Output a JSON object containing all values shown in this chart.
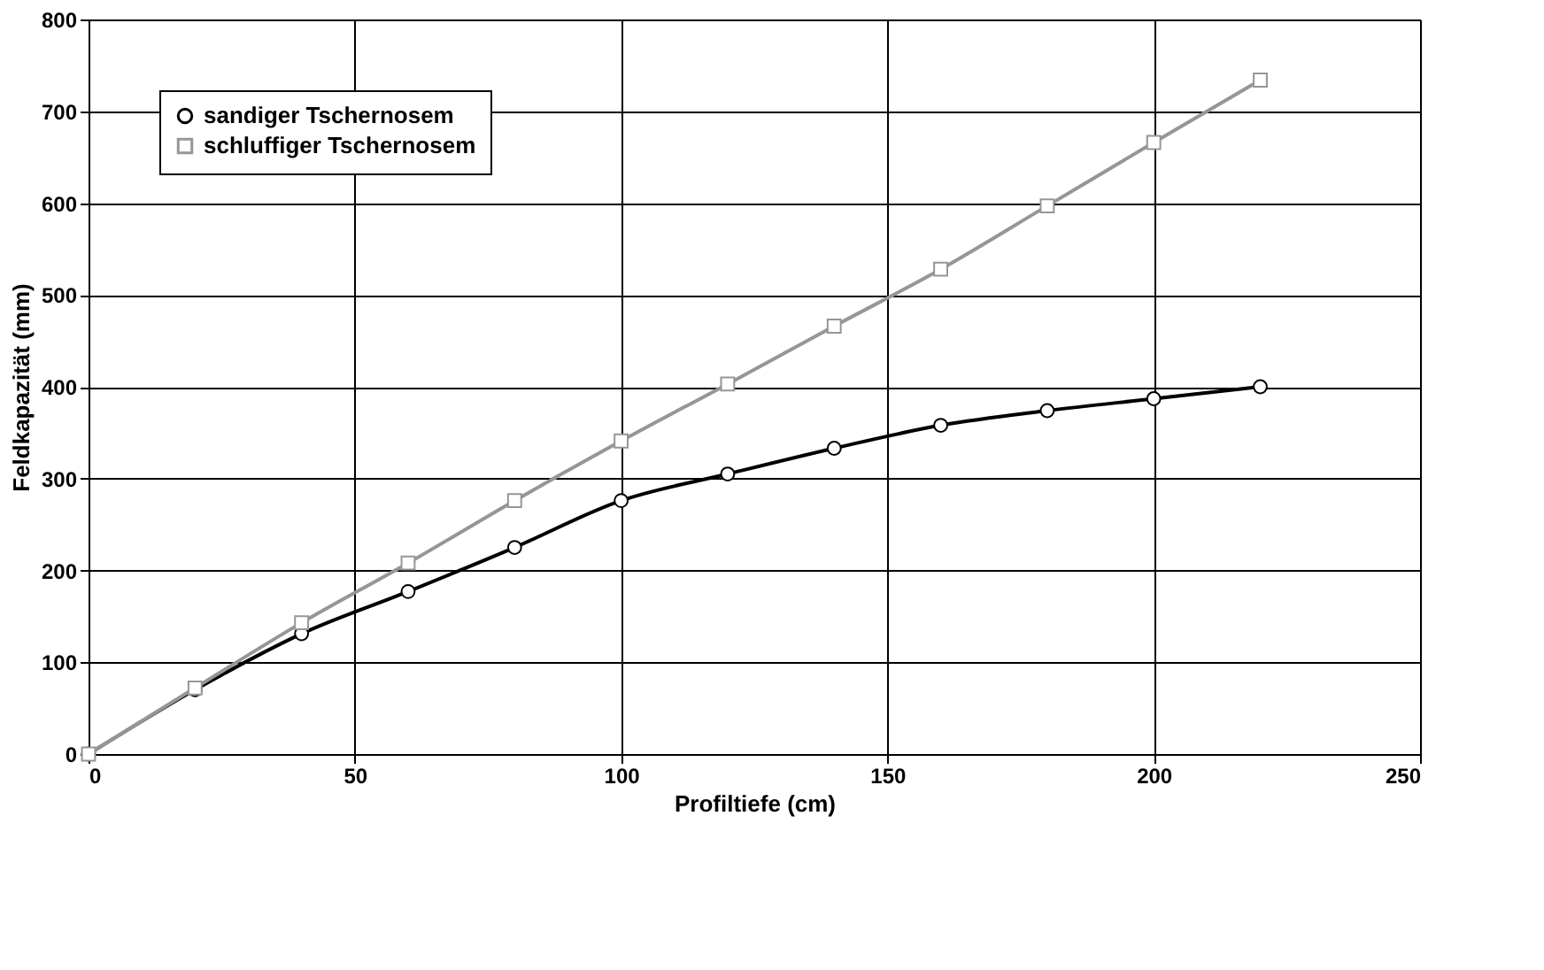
{
  "chart_data": {
    "type": "line",
    "xlabel": "Profiltiefe (cm)",
    "ylabel": "Feldkapazität (mm)",
    "x": [
      0,
      20,
      40,
      60,
      80,
      100,
      120,
      140,
      160,
      180,
      200,
      220
    ],
    "series": [
      {
        "name": "sandiger Tschernosem",
        "color": "#000000",
        "marker": "circle",
        "values": [
          0,
          70,
          131,
          177,
          225,
          276,
          305,
          333,
          358,
          374,
          387,
          400
        ]
      },
      {
        "name": "schluffiger Tschernosem",
        "color": "#969696",
        "marker": "square",
        "values": [
          0,
          72,
          143,
          208,
          276,
          341,
          403,
          466,
          528,
          597,
          666,
          734
        ]
      }
    ],
    "xlim": [
      0,
      250
    ],
    "xticks": [
      0,
      50,
      100,
      150,
      200,
      250
    ],
    "ylim": [
      0,
      800
    ],
    "yticks": [
      0,
      100,
      200,
      300,
      400,
      500,
      600,
      700,
      800
    ],
    "grid": true,
    "legend": "top left",
    "line_style": "solid"
  }
}
